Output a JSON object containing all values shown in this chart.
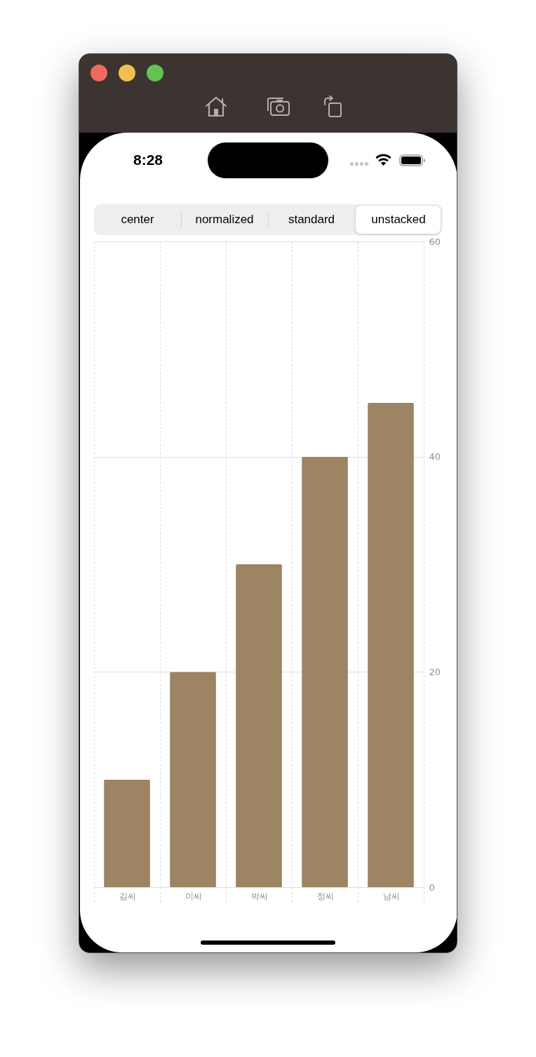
{
  "chart_data": {
    "type": "bar",
    "categories": [
      "김씨",
      "이씨",
      "박씨",
      "정씨",
      "남씨"
    ],
    "values": [
      10,
      20,
      30,
      40,
      45
    ],
    "color": "#9d8462",
    "ylim": [
      0,
      60
    ],
    "yticks": [
      0,
      20,
      40,
      60
    ],
    "grid": true,
    "annotations": [
      "8:28",
      "center",
      "normalized",
      "standard",
      "unstacked"
    ]
  }
}
